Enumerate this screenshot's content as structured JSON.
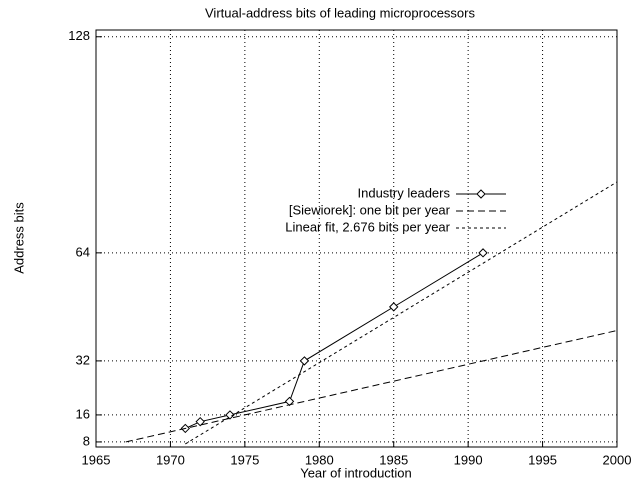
{
  "chart_data": {
    "type": "line",
    "title": "Virtual-address bits of leading microprocessors",
    "x_label": "Year of introduction",
    "y_label": "Address bits",
    "xlim": [
      1965,
      2000
    ],
    "xticks": [
      1965,
      1970,
      1975,
      1980,
      1985,
      1990,
      1995,
      2000
    ],
    "ylim": [
      6.5,
      130
    ],
    "yticks": [
      8,
      16,
      32,
      64,
      128
    ],
    "grid": true,
    "series": [
      {
        "name": "Industry leaders",
        "color": "#000000",
        "dash": "none",
        "marker": "diamond",
        "x": [
          1971,
          1972,
          1974,
          1978,
          1979,
          1985,
          1991
        ],
        "values": [
          12,
          14,
          16,
          20,
          32,
          48,
          64
        ]
      },
      {
        "name": "[Siewiorek]: one bit per year",
        "color": "#000000",
        "dash": "7,4",
        "marker": "none",
        "x": [
          1967,
          2000
        ],
        "values": [
          8,
          41
        ]
      },
      {
        "name": "Linear fit, 2.676 bits per year",
        "color": "#000000",
        "dash": "3,3",
        "marker": "none",
        "x": [
          1971,
          2000
        ],
        "values": [
          7.4,
          85
        ]
      }
    ]
  }
}
